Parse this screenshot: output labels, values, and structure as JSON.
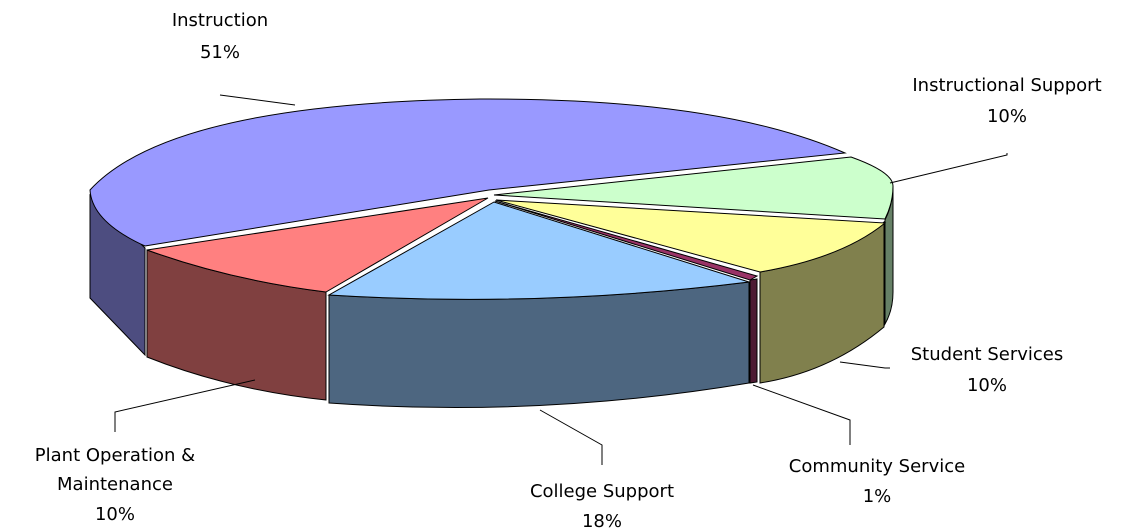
{
  "chart_data": {
    "type": "pie",
    "style": "3d-exploded",
    "legend": "none",
    "slices": [
      {
        "label": "Instruction",
        "pct_label": "51%",
        "value": 51,
        "color": "#9999ff",
        "side_color": "#4d4d80"
      },
      {
        "label": "Instructional Support",
        "pct_label": "10%",
        "value": 10,
        "color": "#ccffcc",
        "side_color": "#668066"
      },
      {
        "label": "Student Services",
        "pct_label": "10%",
        "value": 10,
        "color": "#ffff99",
        "side_color": "#80804d"
      },
      {
        "label": "Community Service",
        "pct_label": "1%",
        "value": 1,
        "color": "#993366",
        "side_color": "#4d1a33"
      },
      {
        "label": "College Support",
        "pct_label": "18%",
        "value": 18,
        "color": "#99ccff",
        "side_color": "#4d6680"
      },
      {
        "label": "Plant Operation &",
        "label_line2": "Maintenance",
        "pct_label": "10%",
        "value": 10,
        "color": "#ff8080",
        "side_color": "#804040"
      }
    ]
  }
}
